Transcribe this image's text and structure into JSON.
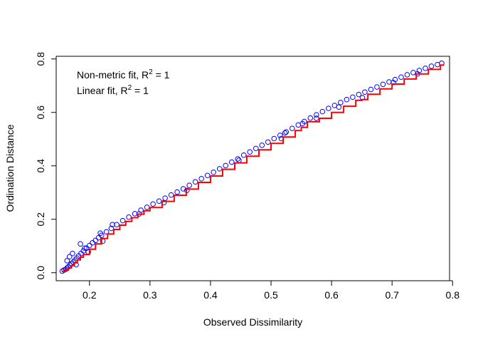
{
  "chart_data": {
    "type": "scatter",
    "title": "",
    "xlabel": "Observed Dissimilarity",
    "ylabel": "Ordination Distance",
    "xlim": [
      0.145,
      0.795
    ],
    "ylim": [
      -0.03,
      0.81
    ],
    "x_ticks": [
      0.2,
      0.3,
      0.4,
      0.5,
      0.6,
      0.7,
      0.8
    ],
    "y_ticks": [
      0.0,
      0.2,
      0.4,
      0.6,
      0.8
    ],
    "x_tick_labels": [
      "0.2",
      "0.3",
      "0.4",
      "0.5",
      "0.6",
      "0.7",
      "0.8"
    ],
    "y_tick_labels": [
      "0.0",
      "0.2",
      "0.4",
      "0.6",
      "0.8"
    ],
    "grid": false,
    "legend": {
      "placement": "top-left",
      "entries": [
        {
          "prefix": "Non-metric fit, R",
          "sup": "2",
          "suffix": " = 1"
        },
        {
          "prefix": "Linear fit, R",
          "sup": "2",
          "suffix": " = 1"
        }
      ]
    },
    "series": [
      {
        "kind": "points",
        "marker": "open-circle",
        "color": "#0000ff",
        "x": [
          0.155,
          0.158,
          0.161,
          0.163,
          0.165,
          0.168,
          0.17,
          0.173,
          0.176,
          0.179,
          0.182,
          0.186,
          0.19,
          0.195,
          0.2,
          0.205,
          0.21,
          0.215,
          0.22,
          0.228,
          0.236,
          0.245,
          0.255,
          0.265,
          0.275,
          0.285,
          0.295,
          0.305,
          0.315,
          0.325,
          0.335,
          0.345,
          0.355,
          0.365,
          0.375,
          0.385,
          0.395,
          0.405,
          0.415,
          0.425,
          0.435,
          0.445,
          0.455,
          0.465,
          0.475,
          0.485,
          0.495,
          0.505,
          0.515,
          0.525,
          0.535,
          0.545,
          0.555,
          0.565,
          0.575,
          0.585,
          0.595,
          0.605,
          0.615,
          0.625,
          0.635,
          0.645,
          0.655,
          0.665,
          0.675,
          0.685,
          0.695,
          0.705,
          0.715,
          0.725,
          0.735,
          0.745,
          0.755,
          0.765,
          0.775,
          0.782,
          0.163,
          0.167,
          0.172,
          0.178,
          0.185,
          0.192,
          0.198,
          0.218,
          0.222,
          0.238,
          0.282,
          0.323,
          0.361,
          0.447,
          0.517,
          0.523,
          0.552,
          0.575,
          0.612,
          0.651,
          0.702,
          0.742
        ],
        "y": [
          0.006,
          0.01,
          0.013,
          0.018,
          0.022,
          0.028,
          0.033,
          0.04,
          0.047,
          0.055,
          0.063,
          0.072,
          0.082,
          0.092,
          0.102,
          0.112,
          0.121,
          0.131,
          0.14,
          0.153,
          0.166,
          0.18,
          0.195,
          0.208,
          0.221,
          0.234,
          0.245,
          0.257,
          0.268,
          0.279,
          0.291,
          0.302,
          0.314,
          0.327,
          0.34,
          0.352,
          0.364,
          0.376,
          0.389,
          0.401,
          0.414,
          0.426,
          0.44,
          0.452,
          0.465,
          0.477,
          0.489,
          0.502,
          0.514,
          0.527,
          0.54,
          0.553,
          0.566,
          0.579,
          0.591,
          0.603,
          0.615,
          0.626,
          0.637,
          0.648,
          0.657,
          0.667,
          0.676,
          0.686,
          0.695,
          0.705,
          0.714,
          0.723,
          0.732,
          0.741,
          0.749,
          0.757,
          0.765,
          0.773,
          0.779,
          0.784,
          0.045,
          0.06,
          0.072,
          0.03,
          0.108,
          0.092,
          0.078,
          0.148,
          0.118,
          0.18,
          0.22,
          0.262,
          0.308,
          0.421,
          0.502,
          0.523,
          0.558,
          0.578,
          0.62,
          0.655,
          0.712,
          0.744
        ]
      },
      {
        "kind": "line",
        "name": "",
        "color": "#ff0000",
        "x": [
          0.155,
          0.16,
          0.165,
          0.17,
          0.175,
          0.18,
          0.185,
          0.19,
          0.2,
          0.21,
          0.22,
          0.23,
          0.24,
          0.25,
          0.26,
          0.27,
          0.28,
          0.29,
          0.3,
          0.32,
          0.34,
          0.36,
          0.38,
          0.4,
          0.42,
          0.44,
          0.46,
          0.48,
          0.5,
          0.52,
          0.54,
          0.55,
          0.56,
          0.58,
          0.6,
          0.62,
          0.64,
          0.65,
          0.66,
          0.68,
          0.7,
          0.72,
          0.74,
          0.76,
          0.78,
          0.785
        ],
        "y": [
          0.005,
          0.01,
          0.018,
          0.027,
          0.037,
          0.048,
          0.058,
          0.068,
          0.088,
          0.108,
          0.128,
          0.145,
          0.162,
          0.178,
          0.192,
          0.206,
          0.219,
          0.232,
          0.244,
          0.267,
          0.29,
          0.313,
          0.338,
          0.362,
          0.387,
          0.411,
          0.436,
          0.46,
          0.484,
          0.508,
          0.532,
          0.544,
          0.565,
          0.578,
          0.6,
          0.623,
          0.645,
          0.648,
          0.668,
          0.688,
          0.706,
          0.725,
          0.744,
          0.761,
          0.777,
          0.781
        ]
      }
    ]
  }
}
